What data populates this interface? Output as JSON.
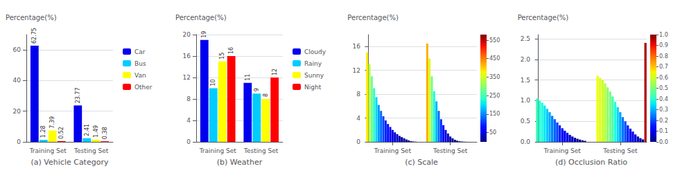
{
  "chart_data": [
    {
      "type": "bar",
      "title": "(a) Vehicle Category",
      "ylabel": "Percentage(%)",
      "categories": [
        "Training Set",
        "Testing Set"
      ],
      "series": [
        {
          "name": "Car",
          "color": "#0000EE",
          "values": [
            62.75,
            23.77
          ]
        },
        {
          "name": "Bus",
          "color": "#00CCFF",
          "values": [
            1.28,
            2.41
          ]
        },
        {
          "name": "Van",
          "color": "#FFFF00",
          "values": [
            7.39,
            1.49
          ]
        },
        {
          "name": "Other",
          "color": "#FF0000",
          "values": [
            0.52,
            0.38
          ]
        }
      ],
      "ylim": [
        0,
        70
      ],
      "yticks": [
        0,
        20,
        40,
        60
      ],
      "grid": true,
      "legend": "right",
      "data_labels": true
    },
    {
      "type": "bar",
      "title": "(b) Weather",
      "ylabel": "Percentage(%)",
      "categories": [
        "Training Set",
        "Testing Set"
      ],
      "series": [
        {
          "name": "Cloudy",
          "color": "#0000EE",
          "values": [
            19,
            11
          ]
        },
        {
          "name": "Rainy",
          "color": "#00CCFF",
          "values": [
            10,
            9
          ]
        },
        {
          "name": "Sunny",
          "color": "#FFFF00",
          "values": [
            15,
            8
          ]
        },
        {
          "name": "Night",
          "color": "#FF0000",
          "values": [
            16,
            12
          ]
        }
      ],
      "ylim": [
        0,
        20
      ],
      "yticks": [
        0,
        4,
        8,
        12,
        16,
        20
      ],
      "grid": true,
      "legend": "right",
      "data_labels": true
    },
    {
      "type": "bar",
      "title": "(c) Scale",
      "ylabel": "Percentage(%)",
      "categories": [
        "Training Set",
        "Testing Set"
      ],
      "values": [
        [
          15.0,
          13.0,
          11.0,
          9.0,
          7.5,
          6.2,
          5.2,
          4.3,
          3.6,
          3.0,
          2.5,
          2.0,
          1.6,
          1.3,
          1.0,
          0.8,
          0.6,
          0.4,
          0.25,
          0.12,
          0.06,
          0.03
        ],
        [
          16.5,
          14.0,
          11.0,
          8.5,
          6.8,
          5.2,
          3.8,
          2.8,
          2.0,
          1.4,
          0.9,
          0.6,
          0.35,
          0.2,
          0.1,
          0.06,
          0.03,
          0.015,
          0.008,
          0.004,
          0.002,
          0.001
        ]
      ],
      "ylim": [
        0,
        18
      ],
      "yticks": [
        0,
        4,
        8,
        12,
        16
      ],
      "grid": true,
      "colorbar": {
        "range": [
          0,
          580
        ],
        "ticks": [
          50,
          150,
          250,
          350,
          450,
          550
        ]
      }
    },
    {
      "type": "bar",
      "title": "(d) Occlusion Ratio",
      "ylabel": "Percentage(%)",
      "categories": [
        "Training Set",
        "Testing Set"
      ],
      "values": [
        [
          1.05,
          1.0,
          0.95,
          0.88,
          0.8,
          0.72,
          0.63,
          0.55,
          0.47,
          0.4,
          0.33,
          0.27,
          0.22,
          0.17,
          0.13,
          0.1,
          0.075,
          0.055,
          0.038,
          0.025
        ],
        [
          1.6,
          1.55,
          1.5,
          1.42,
          1.32,
          1.22,
          1.1,
          0.97,
          0.84,
          0.72,
          0.6,
          0.5,
          0.4,
          0.32,
          0.25,
          0.18,
          0.13,
          0.09,
          0.06,
          2.4
        ]
      ],
      "ylim": [
        0,
        2.6
      ],
      "yticks": [
        {
          "value": 0,
          "label": "0.0"
        },
        0.5,
        {
          "value": 1,
          "label": "1.0"
        },
        1.5,
        {
          "value": 2,
          "label": "2.0"
        },
        2.5
      ],
      "grid": true,
      "colorbar": {
        "range": [
          0,
          1
        ],
        "ticks": [
          {
            "value": 0,
            "label": "0.0"
          },
          0.1,
          0.2,
          0.3,
          0.4,
          0.5,
          0.6,
          0.7,
          0.8,
          0.9,
          {
            "value": 1,
            "label": "1.0"
          }
        ]
      }
    }
  ]
}
